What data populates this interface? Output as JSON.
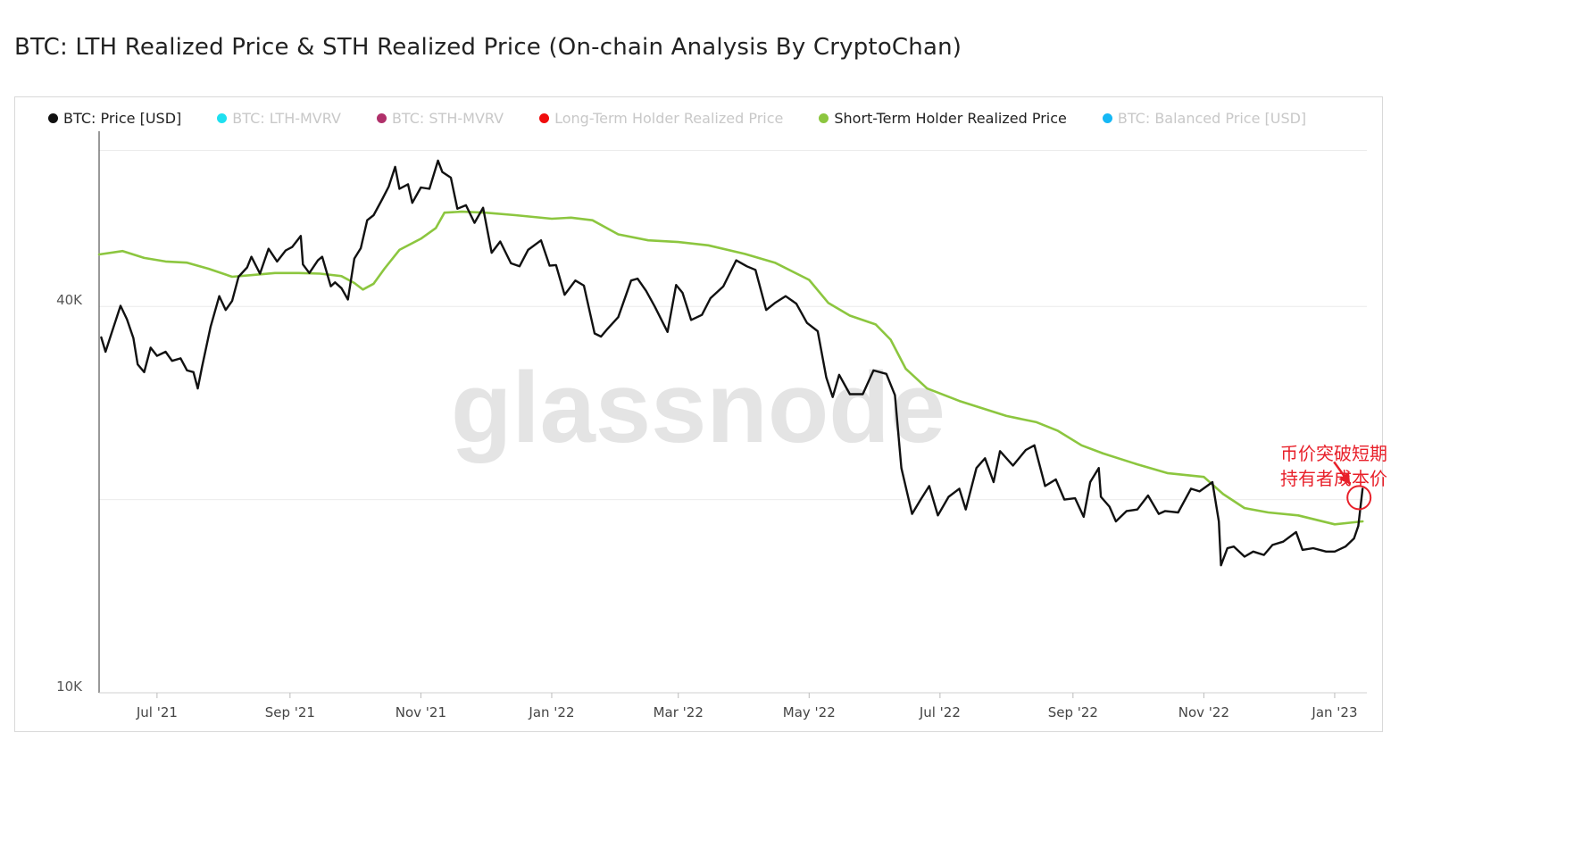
{
  "title": "BTC: LTH Realized Price & STH Realized Price (On-chain Analysis By CryptoChan)",
  "legend": [
    {
      "label": "BTC: Price [USD]",
      "color": "#111111",
      "active": true
    },
    {
      "label": "BTC: LTH-MVRV",
      "color": "#1ee0f0",
      "active": false
    },
    {
      "label": "BTC: STH-MVRV",
      "color": "#b0306a",
      "active": false
    },
    {
      "label": "Long-Term Holder Realized Price",
      "color": "#f00d0d",
      "active": false
    },
    {
      "label": "Short-Term Holder Realized Price",
      "color": "#8cc63f",
      "active": true
    },
    {
      "label": "BTC: Balanced Price [USD]",
      "color": "#15b8f5",
      "active": false
    }
  ],
  "watermark": "glassnode",
  "annotation": {
    "lines": [
      "币价突破短期",
      "持有者成本价"
    ],
    "color": "#e8202a"
  },
  "chart_data": {
    "type": "line",
    "yscale": "log",
    "ylim": [
      10000,
      75000
    ],
    "yticks": [
      {
        "value": 10000,
        "label": "10K"
      },
      {
        "value": 40000,
        "label": "40K"
      }
    ],
    "xlim": [
      "2021-06-04",
      "2023-01-16"
    ],
    "xticks": [
      {
        "date": "2021-07-01",
        "label": "Jul '21"
      },
      {
        "date": "2021-09-01",
        "label": "Sep '21"
      },
      {
        "date": "2021-11-01",
        "label": "Nov '21"
      },
      {
        "date": "2022-01-01",
        "label": "Jan '22"
      },
      {
        "date": "2022-03-01",
        "label": "Mar '22"
      },
      {
        "date": "2022-05-01",
        "label": "May '22"
      },
      {
        "date": "2022-07-01",
        "label": "Jul '22"
      },
      {
        "date": "2022-09-01",
        "label": "Sep '22"
      },
      {
        "date": "2022-11-01",
        "label": "Nov '22"
      },
      {
        "date": "2023-01-01",
        "label": "Jan '23"
      }
    ],
    "series": [
      {
        "name": "BTC: Price [USD]",
        "color": "#111111",
        "points": [
          [
            "2021-06-05",
            35800
          ],
          [
            "2021-06-07",
            34000
          ],
          [
            "2021-06-10",
            36500
          ],
          [
            "2021-06-14",
            40100
          ],
          [
            "2021-06-17",
            38200
          ],
          [
            "2021-06-20",
            35700
          ],
          [
            "2021-06-22",
            32500
          ],
          [
            "2021-06-25",
            31600
          ],
          [
            "2021-06-28",
            34500
          ],
          [
            "2021-07-01",
            33500
          ],
          [
            "2021-07-05",
            34000
          ],
          [
            "2021-07-08",
            32900
          ],
          [
            "2021-07-12",
            33200
          ],
          [
            "2021-07-15",
            31800
          ],
          [
            "2021-07-18",
            31600
          ],
          [
            "2021-07-20",
            29800
          ],
          [
            "2021-07-22",
            32200
          ],
          [
            "2021-07-26",
            37200
          ],
          [
            "2021-07-30",
            41500
          ],
          [
            "2021-08-02",
            39500
          ],
          [
            "2021-08-05",
            40800
          ],
          [
            "2021-08-08",
            44500
          ],
          [
            "2021-08-12",
            46000
          ],
          [
            "2021-08-14",
            47800
          ],
          [
            "2021-08-18",
            45000
          ],
          [
            "2021-08-22",
            49200
          ],
          [
            "2021-08-26",
            47000
          ],
          [
            "2021-08-30",
            48900
          ],
          [
            "2021-09-02",
            49500
          ],
          [
            "2021-09-06",
            51500
          ],
          [
            "2021-09-07",
            46500
          ],
          [
            "2021-09-10",
            45100
          ],
          [
            "2021-09-14",
            47200
          ],
          [
            "2021-09-16",
            47800
          ],
          [
            "2021-09-20",
            43000
          ],
          [
            "2021-09-22",
            43600
          ],
          [
            "2021-09-25",
            42700
          ],
          [
            "2021-09-28",
            41000
          ],
          [
            "2021-10-01",
            47500
          ],
          [
            "2021-10-04",
            49300
          ],
          [
            "2021-10-07",
            54500
          ],
          [
            "2021-10-10",
            55500
          ],
          [
            "2021-10-14",
            58800
          ],
          [
            "2021-10-17",
            61500
          ],
          [
            "2021-10-20",
            66000
          ],
          [
            "2021-10-22",
            61000
          ],
          [
            "2021-10-26",
            62000
          ],
          [
            "2021-10-28",
            58000
          ],
          [
            "2021-11-01",
            61300
          ],
          [
            "2021-11-05",
            61000
          ],
          [
            "2021-11-09",
            67500
          ],
          [
            "2021-11-11",
            64800
          ],
          [
            "2021-11-15",
            63500
          ],
          [
            "2021-11-18",
            56800
          ],
          [
            "2021-11-22",
            57500
          ],
          [
            "2021-11-26",
            54000
          ],
          [
            "2021-11-30",
            57000
          ],
          [
            "2021-12-04",
            48500
          ],
          [
            "2021-12-08",
            50500
          ],
          [
            "2021-12-13",
            46700
          ],
          [
            "2021-12-17",
            46200
          ],
          [
            "2021-12-21",
            49000
          ],
          [
            "2021-12-27",
            50700
          ],
          [
            "2021-12-31",
            46300
          ],
          [
            "2022-01-03",
            46400
          ],
          [
            "2022-01-07",
            41700
          ],
          [
            "2022-01-12",
            43900
          ],
          [
            "2022-01-16",
            43100
          ],
          [
            "2022-01-21",
            36300
          ],
          [
            "2022-01-24",
            35900
          ],
          [
            "2022-01-27",
            36900
          ],
          [
            "2022-02-01",
            38500
          ],
          [
            "2022-02-07",
            43900
          ],
          [
            "2022-02-10",
            44200
          ],
          [
            "2022-02-14",
            42300
          ],
          [
            "2022-02-18",
            40000
          ],
          [
            "2022-02-24",
            36500
          ],
          [
            "2022-02-28",
            43200
          ],
          [
            "2022-03-03",
            42000
          ],
          [
            "2022-03-07",
            38100
          ],
          [
            "2022-03-12",
            38800
          ],
          [
            "2022-03-16",
            41200
          ],
          [
            "2022-03-22",
            43000
          ],
          [
            "2022-03-28",
            47200
          ],
          [
            "2022-04-02",
            46200
          ],
          [
            "2022-04-06",
            45600
          ],
          [
            "2022-04-11",
            39500
          ],
          [
            "2022-04-15",
            40500
          ],
          [
            "2022-04-20",
            41500
          ],
          [
            "2022-04-25",
            40400
          ],
          [
            "2022-04-30",
            37700
          ],
          [
            "2022-05-05",
            36600
          ],
          [
            "2022-05-09",
            31000
          ],
          [
            "2022-05-12",
            28900
          ],
          [
            "2022-05-15",
            31300
          ],
          [
            "2022-05-20",
            29200
          ],
          [
            "2022-05-26",
            29200
          ],
          [
            "2022-05-31",
            31800
          ],
          [
            "2022-06-06",
            31400
          ],
          [
            "2022-06-10",
            29100
          ],
          [
            "2022-06-13",
            22400
          ],
          [
            "2022-06-18",
            19000
          ],
          [
            "2022-06-22",
            20000
          ],
          [
            "2022-06-26",
            21000
          ],
          [
            "2022-06-30",
            18900
          ],
          [
            "2022-07-05",
            20200
          ],
          [
            "2022-07-10",
            20800
          ],
          [
            "2022-07-13",
            19300
          ],
          [
            "2022-07-18",
            22400
          ],
          [
            "2022-07-22",
            23200
          ],
          [
            "2022-07-26",
            21300
          ],
          [
            "2022-07-29",
            23800
          ],
          [
            "2022-08-04",
            22600
          ],
          [
            "2022-08-10",
            23900
          ],
          [
            "2022-08-14",
            24300
          ],
          [
            "2022-08-19",
            21000
          ],
          [
            "2022-08-24",
            21500
          ],
          [
            "2022-08-28",
            20000
          ],
          [
            "2022-09-02",
            20100
          ],
          [
            "2022-09-06",
            18800
          ],
          [
            "2022-09-09",
            21300
          ],
          [
            "2022-09-13",
            22400
          ],
          [
            "2022-09-14",
            20200
          ],
          [
            "2022-09-18",
            19500
          ],
          [
            "2022-09-21",
            18500
          ],
          [
            "2022-09-26",
            19200
          ],
          [
            "2022-10-01",
            19300
          ],
          [
            "2022-10-06",
            20300
          ],
          [
            "2022-10-11",
            19000
          ],
          [
            "2022-10-14",
            19200
          ],
          [
            "2022-10-20",
            19100
          ],
          [
            "2022-10-26",
            20800
          ],
          [
            "2022-10-30",
            20600
          ],
          [
            "2022-11-05",
            21300
          ],
          [
            "2022-11-08",
            18500
          ],
          [
            "2022-11-09",
            15800
          ],
          [
            "2022-11-12",
            16800
          ],
          [
            "2022-11-15",
            16900
          ],
          [
            "2022-11-20",
            16300
          ],
          [
            "2022-11-24",
            16600
          ],
          [
            "2022-11-29",
            16400
          ],
          [
            "2022-12-03",
            17000
          ],
          [
            "2022-12-08",
            17200
          ],
          [
            "2022-12-14",
            17800
          ],
          [
            "2022-12-17",
            16700
          ],
          [
            "2022-12-22",
            16800
          ],
          [
            "2022-12-28",
            16600
          ],
          [
            "2023-01-01",
            16600
          ],
          [
            "2023-01-06",
            16900
          ],
          [
            "2023-01-10",
            17400
          ],
          [
            "2023-01-12",
            18200
          ],
          [
            "2023-01-14",
            20800
          ]
        ]
      },
      {
        "name": "Short-Term Holder Realized Price",
        "color": "#8cc63f",
        "points": [
          [
            "2021-06-04",
            48200
          ],
          [
            "2021-06-15",
            48800
          ],
          [
            "2021-06-25",
            47600
          ],
          [
            "2021-07-05",
            47000
          ],
          [
            "2021-07-15",
            46800
          ],
          [
            "2021-07-25",
            45800
          ],
          [
            "2021-08-05",
            44500
          ],
          [
            "2021-08-15",
            44800
          ],
          [
            "2021-08-25",
            45100
          ],
          [
            "2021-09-05",
            45100
          ],
          [
            "2021-09-15",
            45000
          ],
          [
            "2021-09-25",
            44600
          ],
          [
            "2021-10-01",
            43500
          ],
          [
            "2021-10-05",
            42500
          ],
          [
            "2021-10-10",
            43400
          ],
          [
            "2021-10-15",
            45800
          ],
          [
            "2021-10-22",
            49000
          ],
          [
            "2021-11-01",
            51000
          ],
          [
            "2021-11-08",
            53000
          ],
          [
            "2021-11-12",
            56000
          ],
          [
            "2021-11-20",
            56200
          ],
          [
            "2021-12-01",
            56000
          ],
          [
            "2021-12-15",
            55500
          ],
          [
            "2022-01-01",
            54800
          ],
          [
            "2022-01-10",
            55000
          ],
          [
            "2022-01-20",
            54500
          ],
          [
            "2022-02-01",
            51800
          ],
          [
            "2022-02-15",
            50700
          ],
          [
            "2022-03-01",
            50400
          ],
          [
            "2022-03-15",
            49800
          ],
          [
            "2022-04-01",
            48300
          ],
          [
            "2022-04-15",
            46800
          ],
          [
            "2022-05-01",
            44000
          ],
          [
            "2022-05-10",
            40500
          ],
          [
            "2022-05-20",
            38700
          ],
          [
            "2022-06-01",
            37500
          ],
          [
            "2022-06-08",
            35500
          ],
          [
            "2022-06-15",
            32000
          ],
          [
            "2022-06-25",
            29800
          ],
          [
            "2022-07-10",
            28500
          ],
          [
            "2022-07-20",
            27800
          ],
          [
            "2022-08-01",
            27000
          ],
          [
            "2022-08-15",
            26400
          ],
          [
            "2022-08-25",
            25600
          ],
          [
            "2022-09-05",
            24300
          ],
          [
            "2022-09-15",
            23600
          ],
          [
            "2022-10-01",
            22700
          ],
          [
            "2022-10-15",
            22000
          ],
          [
            "2022-11-01",
            21700
          ],
          [
            "2022-11-10",
            20400
          ],
          [
            "2022-11-20",
            19400
          ],
          [
            "2022-12-01",
            19100
          ],
          [
            "2022-12-15",
            18900
          ],
          [
            "2023-01-01",
            18300
          ],
          [
            "2023-01-14",
            18500
          ]
        ]
      }
    ]
  }
}
